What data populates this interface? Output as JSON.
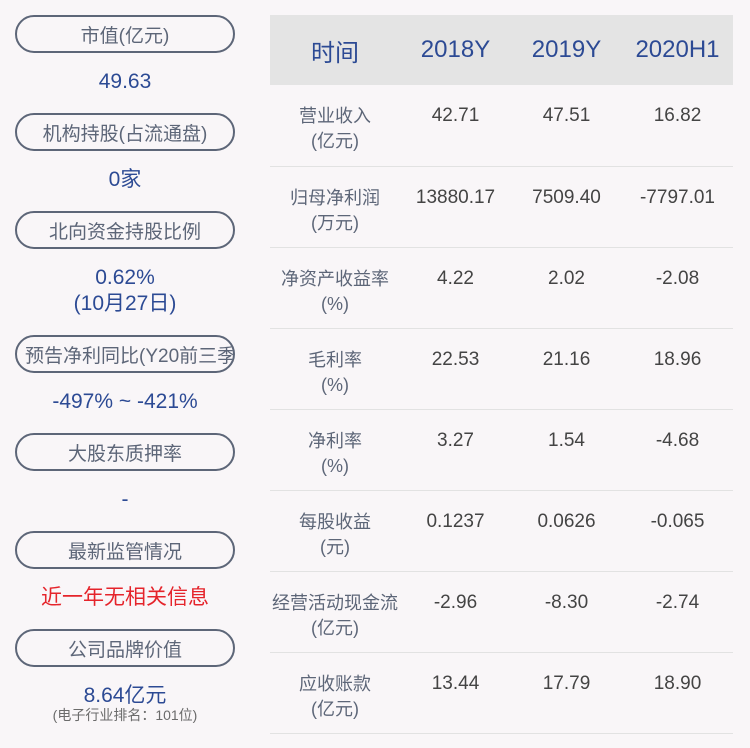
{
  "left": [
    {
      "label": "市值(亿元)",
      "value": "49.63"
    },
    {
      "label": "机构持股(占流通盘)",
      "value": "0家"
    },
    {
      "label": "北向资金持股比例",
      "value": "0.62%",
      "value2": "(10月27日)"
    },
    {
      "label": "预告净利同比(Y20前三季",
      "value": "-497% ~ -421%"
    },
    {
      "label": "大股东质押率",
      "value": "-"
    },
    {
      "label": "最新监管情况",
      "value": "近一年无相关信息"
    },
    {
      "label": "公司品牌价值",
      "value": "8.64亿元",
      "note": "(电子行业排名：101位)"
    }
  ],
  "table": {
    "headers": [
      "时间",
      "2018Y",
      "2019Y",
      "2020H1"
    ],
    "rows": [
      {
        "label": "营业收入",
        "unit": "(亿元)",
        "values": [
          "42.71",
          "47.51",
          "16.82"
        ]
      },
      {
        "label": "归母净利润",
        "unit": "(万元)",
        "values": [
          "13880.17",
          "7509.40",
          "-7797.01"
        ]
      },
      {
        "label": "净资产收益率",
        "unit": "(%)",
        "values": [
          "4.22",
          "2.02",
          "-2.08"
        ]
      },
      {
        "label": "毛利率",
        "unit": "(%)",
        "values": [
          "22.53",
          "21.16",
          "18.96"
        ]
      },
      {
        "label": "净利率",
        "unit": "(%)",
        "values": [
          "3.27",
          "1.54",
          "-4.68"
        ]
      },
      {
        "label": "每股收益",
        "unit": "(元)",
        "values": [
          "0.1237",
          "0.0626",
          "-0.065"
        ]
      },
      {
        "label": "经营活动现金流",
        "unit": "(亿元)",
        "values": [
          "-2.96",
          "-8.30",
          "-2.74"
        ]
      },
      {
        "label": "应收账款",
        "unit": "(亿元)",
        "values": [
          "13.44",
          "17.79",
          "18.90"
        ]
      }
    ]
  },
  "colors": {
    "accent": "#2c4a94",
    "alert": "#e5242b",
    "pill_border": "#5d6678",
    "header_bg": "#e4e4e4"
  }
}
